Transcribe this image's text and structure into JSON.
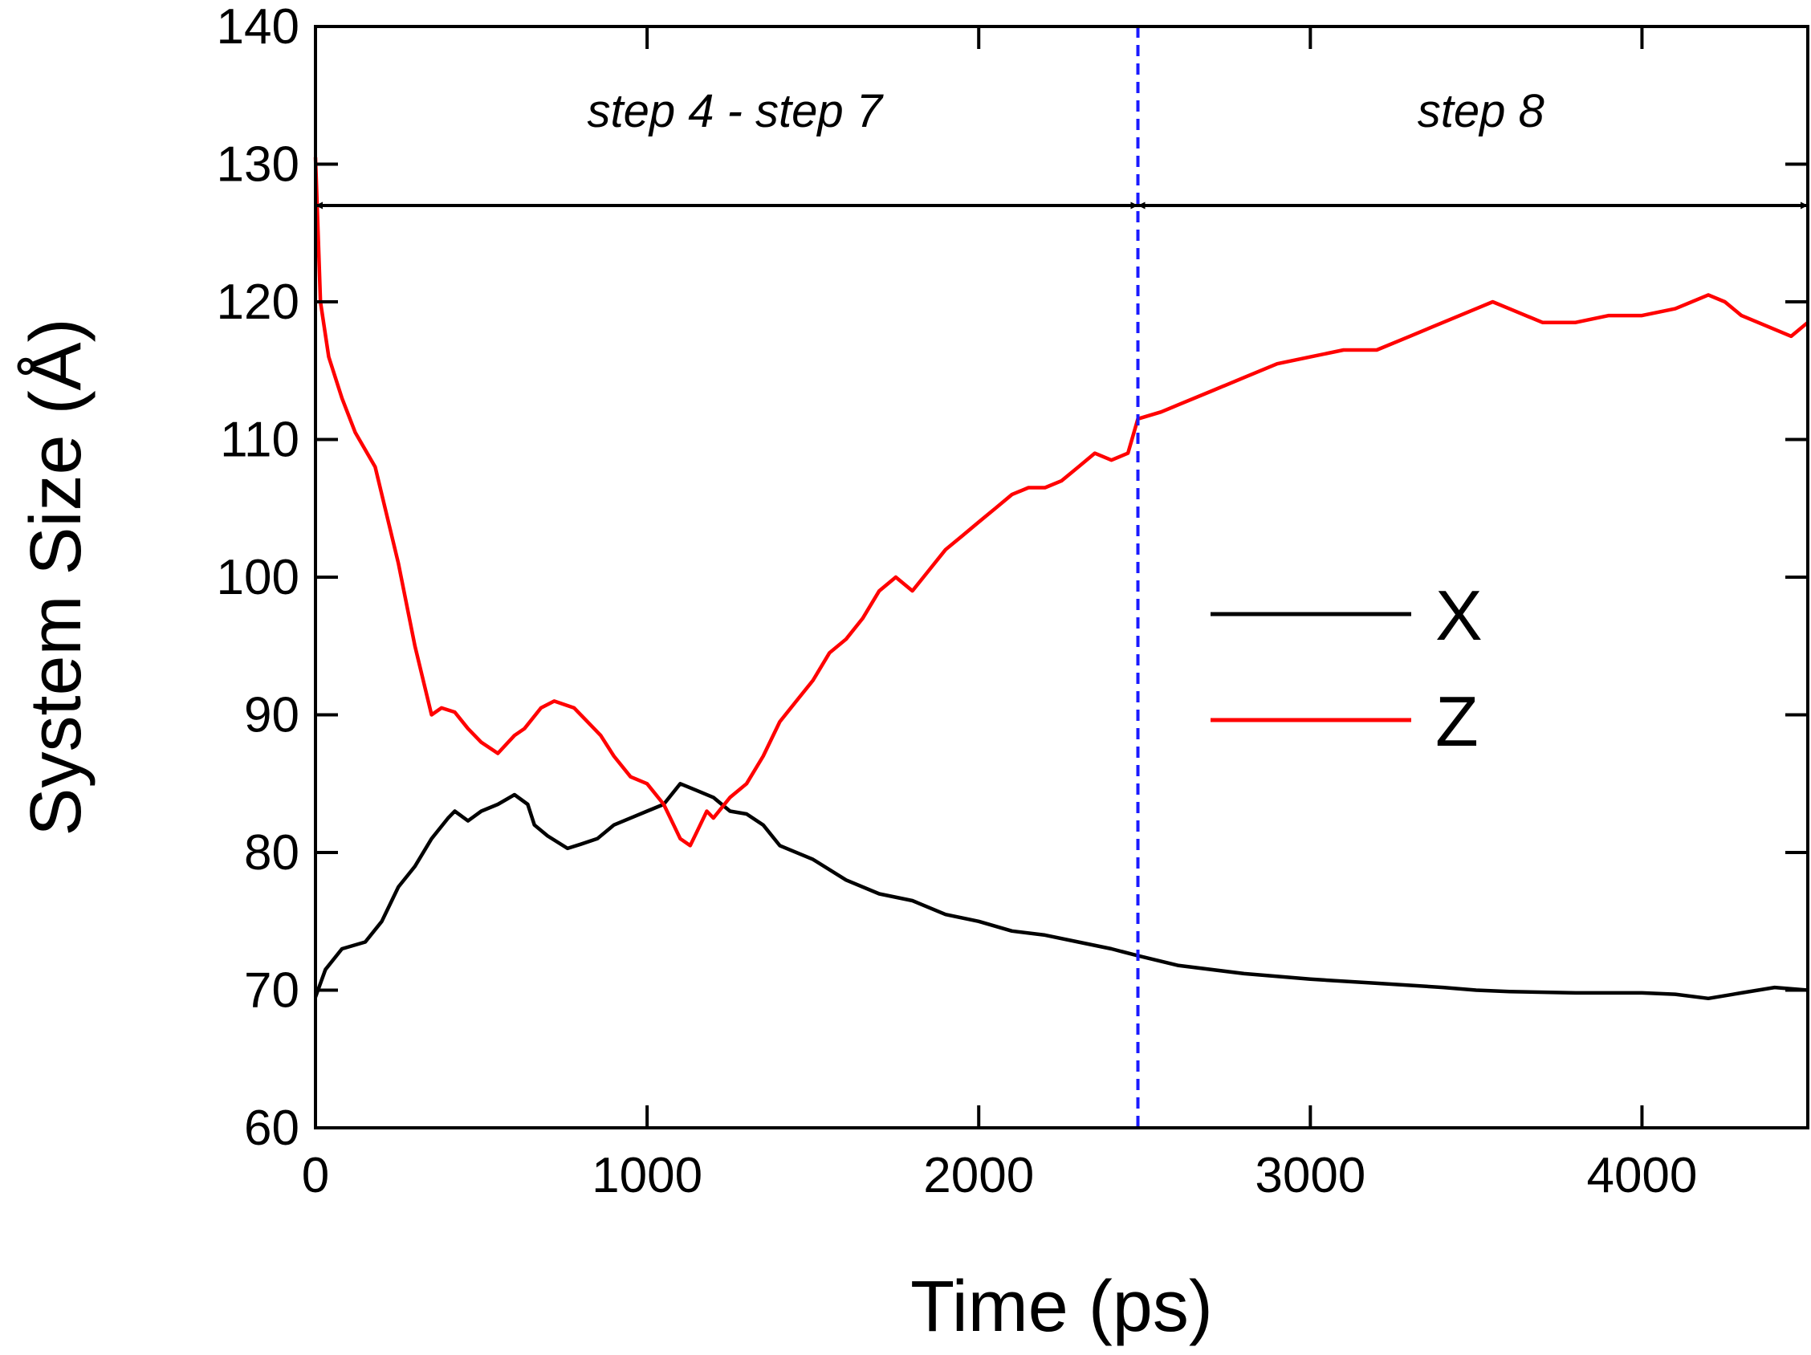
{
  "chart_data": {
    "type": "line",
    "title": "",
    "xlabel": "Time (ps)",
    "ylabel": "System Size (Å)",
    "xlim": [
      0,
      4500
    ],
    "ylim": [
      60,
      140
    ],
    "xticks": [
      "0",
      "1000",
      "2000",
      "3000",
      "4000"
    ],
    "yticks": [
      "60",
      "70",
      "80",
      "90",
      "100",
      "110",
      "120",
      "130",
      "140"
    ],
    "grid": false,
    "legend_position": "center-right",
    "annotations": [
      {
        "text": "step 4 - step 7",
        "x_start": 0,
        "x_end": 2480,
        "y": 127
      },
      {
        "text": "step 8",
        "x_start": 2480,
        "x_end": 4500,
        "y": 127
      }
    ],
    "divider": {
      "x": 2480,
      "color": "#1a1aff",
      "style": "dashed"
    },
    "series": [
      {
        "name": "X",
        "color": "#000000",
        "x": [
          0,
          30,
          80,
          150,
          200,
          250,
          300,
          350,
          400,
          420,
          460,
          500,
          550,
          600,
          640,
          660,
          700,
          760,
          800,
          850,
          900,
          950,
          1000,
          1050,
          1100,
          1150,
          1200,
          1250,
          1300,
          1350,
          1400,
          1500,
          1600,
          1700,
          1800,
          1900,
          2000,
          2100,
          2200,
          2300,
          2400,
          2480,
          2600,
          2800,
          3000,
          3200,
          3400,
          3500,
          3600,
          3800,
          4000,
          4100,
          4200,
          4300,
          4400,
          4500
        ],
        "y": [
          69.5,
          71.5,
          73.0,
          73.5,
          75.0,
          77.5,
          79.0,
          81.0,
          82.5,
          83.0,
          82.3,
          83.0,
          83.5,
          84.2,
          83.5,
          82.0,
          81.2,
          80.3,
          80.6,
          81.0,
          82.0,
          82.5,
          83.0,
          83.5,
          85.0,
          84.5,
          84.0,
          83.0,
          82.8,
          82.0,
          80.5,
          79.5,
          78.0,
          77.0,
          76.5,
          75.5,
          75.0,
          74.3,
          74.0,
          73.5,
          73.0,
          72.5,
          71.8,
          71.2,
          70.8,
          70.5,
          70.2,
          70.0,
          69.9,
          69.8,
          69.8,
          69.7,
          69.4,
          69.8,
          70.2,
          70.0
        ]
      },
      {
        "name": "Z",
        "color": "#ff0000",
        "x": [
          0,
          15,
          40,
          80,
          120,
          180,
          250,
          300,
          350,
          380,
          420,
          460,
          500,
          550,
          600,
          630,
          680,
          720,
          780,
          820,
          860,
          900,
          950,
          1000,
          1050,
          1080,
          1100,
          1130,
          1150,
          1180,
          1200,
          1250,
          1300,
          1350,
          1400,
          1450,
          1500,
          1550,
          1600,
          1650,
          1700,
          1750,
          1800,
          1850,
          1900,
          1950,
          2000,
          2050,
          2100,
          2150,
          2200,
          2250,
          2300,
          2350,
          2400,
          2450,
          2480,
          2550,
          2600,
          2700,
          2800,
          2900,
          3000,
          3100,
          3200,
          3300,
          3400,
          3500,
          3550,
          3600,
          3700,
          3800,
          3900,
          4000,
          4100,
          4200,
          4250,
          4300,
          4400,
          4450,
          4500
        ],
        "y": [
          130.5,
          120.0,
          116.0,
          113.0,
          110.5,
          108.0,
          101.0,
          95.0,
          90.0,
          90.5,
          90.2,
          89.0,
          88.0,
          87.2,
          88.5,
          89.0,
          90.5,
          91.0,
          90.5,
          89.5,
          88.5,
          87.0,
          85.5,
          85.0,
          83.5,
          82.0,
          81.0,
          80.5,
          81.5,
          83.0,
          82.5,
          84.0,
          85.0,
          87.0,
          89.5,
          91.0,
          92.5,
          94.5,
          95.5,
          97.0,
          99.0,
          100.0,
          99.0,
          100.5,
          102.0,
          103.0,
          104.0,
          105.0,
          106.0,
          106.5,
          106.5,
          107.0,
          108.0,
          109.0,
          108.5,
          109.0,
          111.5,
          112.0,
          112.5,
          113.5,
          114.5,
          115.5,
          116.0,
          116.5,
          116.5,
          117.5,
          118.5,
          119.5,
          120.0,
          119.5,
          118.5,
          118.5,
          119.0,
          119.0,
          119.5,
          120.5,
          120.0,
          119.0,
          118.0,
          117.5,
          118.5
        ]
      }
    ]
  }
}
